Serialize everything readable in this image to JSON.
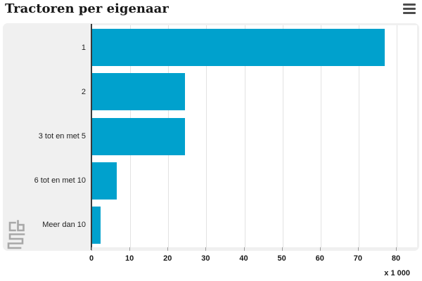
{
  "icons": {
    "menu": "hamburger-icon",
    "source_logo": "cbs-logo"
  },
  "colors": {
    "bar": "#00a1cd",
    "panel_bg": "#f0f0f0",
    "gridline": "#e2e2e2",
    "axis": "#3a3a3a"
  },
  "chart_data": {
    "type": "bar",
    "orientation": "horizontal",
    "title": "Tractoren per eigenaar",
    "categories": [
      "1",
      "2",
      "3 tot en met 5",
      "6 tot en met 10",
      "Meer dan 10"
    ],
    "values": [
      76.9,
      24.3,
      24.4,
      6.5,
      2.2
    ],
    "x_ticks": [
      0,
      10,
      20,
      30,
      40,
      50,
      60,
      70,
      80
    ],
    "xlim": [
      0,
      80
    ],
    "unit_label": "x 1 000",
    "xlabel": "",
    "ylabel": "",
    "grid": true,
    "legend": "none"
  }
}
